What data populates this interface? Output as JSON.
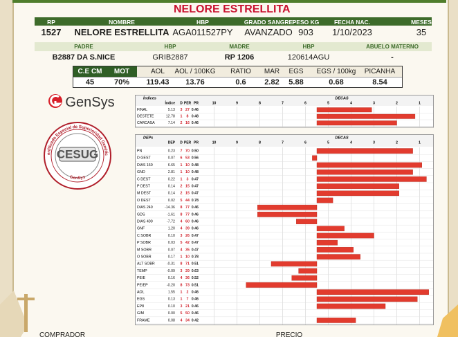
{
  "header": {
    "title": "NELORE ESTRELLITA"
  },
  "animal": {
    "headers": [
      "RP",
      "NOMBRE",
      "HBP",
      "GRADO SANGRE",
      "PESO KG",
      "FECHA NAC.",
      "MESES"
    ],
    "row": [
      "1527",
      "NELORE ESTRELLITA",
      "AGA011527PY",
      "AVANZADO",
      "903",
      "1/10/2023",
      "35"
    ]
  },
  "parents": {
    "headers": [
      "PADRE",
      "HBP",
      "MADRE",
      "HBP",
      "ABUELO MATERNO"
    ],
    "row": [
      "B2887 DA S.NICE",
      "GRIB2887",
      "RP 1206",
      "120614AGU",
      "-"
    ]
  },
  "carcass": {
    "headers": [
      "C.E CM",
      "MOT",
      "AOL",
      "AOL / 100KG",
      "RATIO",
      "MAR",
      "EGS",
      "EGS / 100kg",
      "PICANHA"
    ],
    "row": [
      "45",
      "70%",
      "119.43",
      "13.76",
      "0.6",
      "2.82",
      "5.88",
      "0.68",
      "8.54"
    ]
  },
  "logo": {
    "brand": "GenSys"
  },
  "seal": {
    "center": "CESUG",
    "ring_top": "Certificado Especial de Superioridad Genética",
    "ring_bottom": "GenSys"
  },
  "indices": {
    "title": "Índices",
    "columns": [
      "Índice",
      "D",
      "PER",
      "PR"
    ],
    "decas_title": "DECAS",
    "decas": [
      10,
      9,
      8,
      7,
      6,
      5,
      4,
      3,
      2,
      1
    ],
    "xlim": [
      10.5,
      0.5
    ],
    "rows": [
      {
        "name": "FINAL",
        "values": [
          "5.13",
          "3",
          "27",
          "0.46"
        ],
        "bar": 3.1
      },
      {
        "name": "DESTETE",
        "values": [
          "12.78",
          "1",
          "8",
          "0.48"
        ],
        "bar": 1.2
      },
      {
        "name": "CARCASA",
        "values": [
          "7.14",
          "2",
          "16",
          "0.46"
        ],
        "bar": 2.0
      }
    ]
  },
  "deps": {
    "title": "DEPs",
    "columns": [
      "DEP",
      "D",
      "PER",
      "PR"
    ],
    "decas_title": "DECAS",
    "decas": [
      10,
      9,
      8,
      7,
      6,
      5,
      4,
      3,
      2,
      1
    ],
    "xlim": [
      10.5,
      0.5
    ],
    "rows": [
      {
        "name": "PN",
        "values": [
          "0.23",
          "7",
          "70",
          "0.50"
        ],
        "bar": 1.3
      },
      {
        "name": "D GEST",
        "values": [
          "0.07",
          "6",
          "53",
          "0.56"
        ],
        "bar": 5.7
      },
      {
        "name": "DIAS 160",
        "values": [
          "6.65",
          "1",
          "10",
          "0.48"
        ],
        "bar": 0.9
      },
      {
        "name": "GND",
        "values": [
          "2.81",
          "1",
          "10",
          "0.48"
        ],
        "bar": 1.3
      },
      {
        "name": "C DEST",
        "values": [
          "0.22",
          "1",
          "3",
          "0.47"
        ],
        "bar": 0.7
      },
      {
        "name": "P DEST",
        "values": [
          "0.14",
          "2",
          "15",
          "0.47"
        ],
        "bar": 1.9
      },
      {
        "name": "M DEST",
        "values": [
          "0.14",
          "2",
          "15",
          "0.47"
        ],
        "bar": 1.9
      },
      {
        "name": "O DEST",
        "values": [
          "0.02",
          "5",
          "44",
          "0.78"
        ],
        "bar": 4.8
      },
      {
        "name": "DIAS 240",
        "values": [
          "-14.36",
          "8",
          "77",
          "0.46"
        ],
        "bar": 8.1
      },
      {
        "name": "GDS",
        "values": [
          "-1.61",
          "8",
          "77",
          "0.46"
        ],
        "bar": 8.1
      },
      {
        "name": "DIAS 400",
        "values": [
          "-7.72",
          "4",
          "60",
          "0.46"
        ],
        "bar": 6.4
      },
      {
        "name": "GNF",
        "values": [
          "1.20",
          "4",
          "39",
          "0.46"
        ],
        "bar": 4.3
      },
      {
        "name": "C SOBR",
        "values": [
          "0.10",
          "3",
          "26",
          "0.47"
        ],
        "bar": 3.0
      },
      {
        "name": "P SOBR",
        "values": [
          "0.03",
          "5",
          "42",
          "0.47"
        ],
        "bar": 4.6
      },
      {
        "name": "M SOBR",
        "values": [
          "0.07",
          "4",
          "35",
          "0.47"
        ],
        "bar": 3.9
      },
      {
        "name": "O SOBR",
        "values": [
          "0.17",
          "1",
          "10",
          "0.78"
        ],
        "bar": 3.6
      },
      {
        "name": "ALT SOBR",
        "values": [
          "-0.31",
          "8",
          "71",
          "0.51"
        ],
        "bar": 7.5
      },
      {
        "name": "TEMP",
        "values": [
          "-0.09",
          "3",
          "29",
          "0.63"
        ],
        "bar": 6.3
      },
      {
        "name": "PE/E",
        "values": [
          "0.16",
          "4",
          "36",
          "0.52"
        ],
        "bar": 6.6
      },
      {
        "name": "PE/EP",
        "values": [
          "-0.20",
          "8",
          "73",
          "0.51"
        ],
        "bar": 8.6
      },
      {
        "name": "AOL",
        "values": [
          "1.55",
          "1",
          "2",
          "0.46"
        ],
        "bar": 0.6
      },
      {
        "name": "EGS",
        "values": [
          "0.13",
          "1",
          "7",
          "0.46"
        ],
        "bar": 1.1
      },
      {
        "name": "EP8",
        "values": [
          "0.10",
          "3",
          "21",
          "0.46"
        ],
        "bar": 2.5
      },
      {
        "name": "GIM",
        "values": [
          "0.00",
          "5",
          "50",
          "0.46"
        ],
        "bar": 5.5
      },
      {
        "name": "FRAME",
        "values": [
          "0.08",
          "4",
          "34",
          "0.42"
        ],
        "bar": 3.8
      }
    ]
  },
  "footer": {
    "buyer": "COMPRADOR",
    "price": "PRECIO"
  }
}
